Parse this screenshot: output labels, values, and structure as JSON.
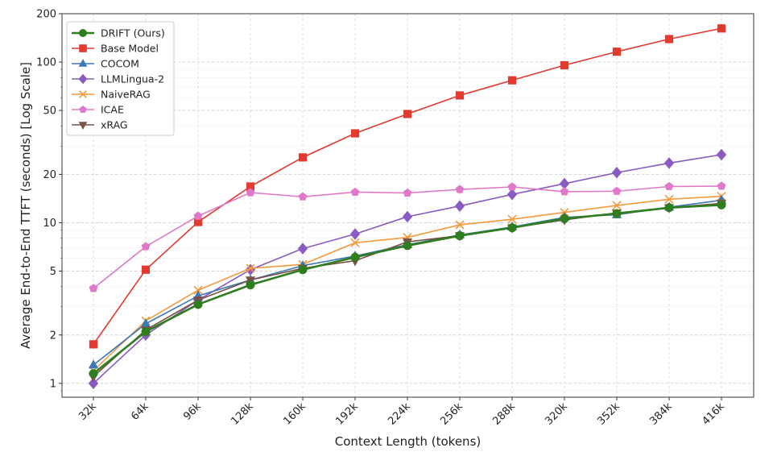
{
  "chart_data": {
    "type": "line",
    "xlabel": "Context Length (tokens)",
    "ylabel": "Average End-to-End TTFT (seconds) [Log Scale]",
    "yscale": "log",
    "ylim": [
      0.82,
      200
    ],
    "yticks": [
      1,
      2,
      5,
      10,
      20,
      50,
      100,
      200
    ],
    "grid": true,
    "legend_position": "top-left",
    "categories": [
      "32k",
      "64k",
      "96k",
      "128k",
      "160k",
      "192k",
      "224k",
      "256k",
      "288k",
      "320k",
      "352k",
      "384k",
      "416k"
    ],
    "series": [
      {
        "name": "DRIFT (Ours)",
        "color": "#2e7d1e",
        "marker": "circle",
        "values": [
          1.15,
          2.1,
          3.1,
          4.1,
          5.1,
          6.1,
          7.2,
          8.3,
          9.3,
          10.6,
          11.4,
          12.4,
          12.9
        ]
      },
      {
        "name": "Base Model",
        "color": "#e23a2f",
        "marker": "square",
        "values": [
          1.75,
          5.1,
          10.1,
          16.8,
          25.5,
          36.0,
          47.5,
          62.0,
          77.0,
          95.5,
          116.0,
          139.0,
          162.0
        ]
      },
      {
        "name": "COCOM",
        "color": "#3a78b8",
        "marker": "triangle-up",
        "values": [
          1.3,
          2.35,
          3.5,
          4.4,
          5.4,
          6.2,
          7.3,
          8.4,
          9.4,
          10.8,
          11.2,
          12.5,
          13.8
        ]
      },
      {
        "name": "LLMLingua-2",
        "color": "#8a5cc2",
        "marker": "diamond",
        "values": [
          1.0,
          2.0,
          3.3,
          5.1,
          6.9,
          8.5,
          10.9,
          12.7,
          15.0,
          17.5,
          20.5,
          23.5,
          26.5
        ]
      },
      {
        "name": "NaiveRAG",
        "color": "#f39a3c",
        "marker": "x",
        "values": [
          1.2,
          2.45,
          3.8,
          5.2,
          5.5,
          7.5,
          8.1,
          9.7,
          10.5,
          11.6,
          12.8,
          14.0,
          14.6
        ]
      },
      {
        "name": "ICAE",
        "color": "#e079c9",
        "marker": "pentagon",
        "values": [
          3.9,
          7.1,
          11.0,
          15.4,
          14.5,
          15.5,
          15.3,
          16.1,
          16.7,
          15.6,
          15.7,
          16.8,
          16.9
        ]
      },
      {
        "name": "xRAG",
        "color": "#7b5145",
        "marker": "triangle-down",
        "values": [
          1.1,
          2.15,
          3.3,
          4.4,
          5.2,
          5.8,
          7.6,
          8.3,
          9.3,
          10.4,
          11.5,
          12.4,
          13.2
        ]
      }
    ]
  }
}
